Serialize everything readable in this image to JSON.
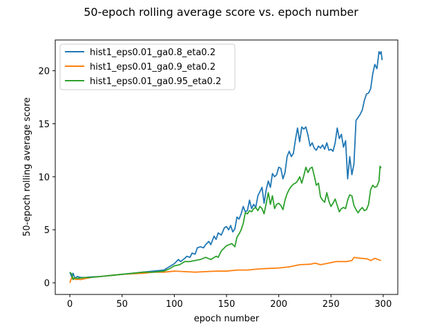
{
  "chart_data": {
    "type": "line",
    "title": "50-epoch rolling average score vs. epoch number",
    "xlabel": "epoch number",
    "ylabel": "50-epoch rolling average score",
    "xlim": [
      -14,
      314
    ],
    "ylim": [
      -1.1,
      22.9
    ],
    "xticks": [
      0,
      50,
      100,
      150,
      200,
      250,
      300
    ],
    "yticks": [
      0,
      5,
      10,
      15,
      20
    ],
    "grid": false,
    "legend_position": "top-left",
    "series": [
      {
        "name": "hist1_eps0.01_ga0.8_eta0.2",
        "color": "#1f77b4",
        "points": [
          [
            0,
            1.0
          ],
          [
            2,
            0.5
          ],
          [
            3,
            0.9
          ],
          [
            5,
            0.4
          ],
          [
            7,
            0.6
          ],
          [
            10,
            0.5
          ],
          [
            15,
            0.5
          ],
          [
            20,
            0.55
          ],
          [
            30,
            0.6
          ],
          [
            40,
            0.7
          ],
          [
            50,
            0.8
          ],
          [
            60,
            0.9
          ],
          [
            70,
            1.0
          ],
          [
            80,
            1.1
          ],
          [
            90,
            1.2
          ],
          [
            95,
            1.5
          ],
          [
            100,
            1.8
          ],
          [
            104,
            2.2
          ],
          [
            106,
            2.0
          ],
          [
            110,
            2.3
          ],
          [
            112,
            2.5
          ],
          [
            115,
            2.4
          ],
          [
            117,
            2.8
          ],
          [
            120,
            2.7
          ],
          [
            122,
            3.3
          ],
          [
            125,
            3.4
          ],
          [
            128,
            3.3
          ],
          [
            130,
            3.6
          ],
          [
            133,
            3.9
          ],
          [
            135,
            3.6
          ],
          [
            138,
            4.4
          ],
          [
            140,
            4.1
          ],
          [
            142,
            4.7
          ],
          [
            145,
            4.5
          ],
          [
            148,
            5.2
          ],
          [
            150,
            5.3
          ],
          [
            152,
            5.0
          ],
          [
            154,
            5.4
          ],
          [
            156,
            4.8
          ],
          [
            158,
            5.1
          ],
          [
            160,
            6.2
          ],
          [
            162,
            6.0
          ],
          [
            164,
            6.5
          ],
          [
            166,
            7.2
          ],
          [
            168,
            6.7
          ],
          [
            170,
            6.8
          ],
          [
            172,
            7.8
          ],
          [
            174,
            7.0
          ],
          [
            176,
            7.4
          ],
          [
            178,
            7.1
          ],
          [
            180,
            8.2
          ],
          [
            182,
            8.6
          ],
          [
            184,
            9.0
          ],
          [
            186,
            7.5
          ],
          [
            188,
            8.8
          ],
          [
            190,
            9.6
          ],
          [
            192,
            9.0
          ],
          [
            194,
            10.3
          ],
          [
            196,
            10.0
          ],
          [
            198,
            10.2
          ],
          [
            200,
            10.9
          ],
          [
            202,
            10.8
          ],
          [
            204,
            9.8
          ],
          [
            206,
            10.4
          ],
          [
            208,
            11.9
          ],
          [
            210,
            12.4
          ],
          [
            212,
            11.9
          ],
          [
            214,
            12.2
          ],
          [
            216,
            13.5
          ],
          [
            218,
            14.6
          ],
          [
            220,
            13.3
          ],
          [
            222,
            14.7
          ],
          [
            224,
            14.5
          ],
          [
            226,
            14.7
          ],
          [
            228,
            13.9
          ],
          [
            230,
            12.9
          ],
          [
            232,
            13.2
          ],
          [
            234,
            12.7
          ],
          [
            236,
            12.5
          ],
          [
            238,
            12.9
          ],
          [
            240,
            12.7
          ],
          [
            242,
            13.0
          ],
          [
            244,
            12.6
          ],
          [
            246,
            13.2
          ],
          [
            248,
            12.5
          ],
          [
            250,
            12.6
          ],
          [
            252,
            12.4
          ],
          [
            254,
            13.2
          ],
          [
            256,
            14.6
          ],
          [
            258,
            13.6
          ],
          [
            260,
            14.0
          ],
          [
            262,
            12.8
          ],
          [
            264,
            13.4
          ],
          [
            266,
            9.8
          ],
          [
            268,
            11.9
          ],
          [
            270,
            10.2
          ],
          [
            272,
            11.2
          ],
          [
            274,
            15.3
          ],
          [
            276,
            15.6
          ],
          [
            278,
            15.9
          ],
          [
            280,
            16.3
          ],
          [
            282,
            17.2
          ],
          [
            284,
            17.8
          ],
          [
            286,
            17.9
          ],
          [
            288,
            18.3
          ],
          [
            290,
            19.7
          ],
          [
            292,
            20.6
          ],
          [
            294,
            20.2
          ],
          [
            296,
            21.8
          ],
          [
            297,
            21.6
          ],
          [
            298,
            21.8
          ],
          [
            299,
            21.0
          ]
        ]
      },
      {
        "name": "hist1_eps0.01_ga0.9_eta0.2",
        "color": "#ff7f0e",
        "points": [
          [
            0,
            0.0
          ],
          [
            1,
            0.3
          ],
          [
            2,
            0.5
          ],
          [
            4,
            0.4
          ],
          [
            6,
            0.3
          ],
          [
            8,
            0.35
          ],
          [
            10,
            0.3
          ],
          [
            15,
            0.4
          ],
          [
            20,
            0.5
          ],
          [
            30,
            0.6
          ],
          [
            40,
            0.7
          ],
          [
            50,
            0.8
          ],
          [
            60,
            0.85
          ],
          [
            70,
            0.9
          ],
          [
            80,
            1.0
          ],
          [
            90,
            1.0
          ],
          [
            100,
            1.1
          ],
          [
            110,
            1.05
          ],
          [
            120,
            1.0
          ],
          [
            130,
            1.05
          ],
          [
            140,
            1.1
          ],
          [
            150,
            1.1
          ],
          [
            160,
            1.2
          ],
          [
            170,
            1.2
          ],
          [
            180,
            1.3
          ],
          [
            190,
            1.35
          ],
          [
            200,
            1.4
          ],
          [
            210,
            1.5
          ],
          [
            220,
            1.7
          ],
          [
            230,
            1.75
          ],
          [
            235,
            1.85
          ],
          [
            240,
            1.7
          ],
          [
            245,
            1.8
          ],
          [
            250,
            1.9
          ],
          [
            255,
            2.0
          ],
          [
            260,
            2.0
          ],
          [
            265,
            2.0
          ],
          [
            270,
            2.1
          ],
          [
            272,
            2.4
          ],
          [
            275,
            2.35
          ],
          [
            280,
            2.3
          ],
          [
            285,
            2.25
          ],
          [
            288,
            2.1
          ],
          [
            292,
            2.3
          ],
          [
            295,
            2.2
          ],
          [
            298,
            2.1
          ]
        ]
      },
      {
        "name": "hist1_eps0.01_ga0.95_eta0.2",
        "color": "#2ca02c",
        "points": [
          [
            0,
            1.0
          ],
          [
            2,
            0.8
          ],
          [
            3,
            0.3
          ],
          [
            5,
            0.5
          ],
          [
            7,
            0.4
          ],
          [
            10,
            0.45
          ],
          [
            15,
            0.5
          ],
          [
            20,
            0.5
          ],
          [
            30,
            0.6
          ],
          [
            40,
            0.7
          ],
          [
            50,
            0.8
          ],
          [
            60,
            0.9
          ],
          [
            70,
            1.0
          ],
          [
            80,
            1.0
          ],
          [
            90,
            1.1
          ],
          [
            95,
            1.3
          ],
          [
            100,
            1.6
          ],
          [
            105,
            1.7
          ],
          [
            110,
            2.0
          ],
          [
            115,
            2.0
          ],
          [
            120,
            2.1
          ],
          [
            125,
            2.2
          ],
          [
            130,
            2.4
          ],
          [
            135,
            2.2
          ],
          [
            140,
            2.5
          ],
          [
            142,
            2.4
          ],
          [
            145,
            3.0
          ],
          [
            150,
            3.5
          ],
          [
            155,
            3.7
          ],
          [
            158,
            3.4
          ],
          [
            160,
            4.3
          ],
          [
            162,
            4.6
          ],
          [
            164,
            5.0
          ],
          [
            166,
            5.6
          ],
          [
            168,
            6.6
          ],
          [
            170,
            6.5
          ],
          [
            172,
            6.8
          ],
          [
            174,
            6.7
          ],
          [
            176,
            7.0
          ],
          [
            178,
            7.1
          ],
          [
            180,
            6.8
          ],
          [
            182,
            7.2
          ],
          [
            184,
            7.0
          ],
          [
            186,
            6.5
          ],
          [
            188,
            7.5
          ],
          [
            190,
            8.5
          ],
          [
            192,
            7.4
          ],
          [
            194,
            8.2
          ],
          [
            196,
            7.0
          ],
          [
            198,
            7.4
          ],
          [
            200,
            7.5
          ],
          [
            202,
            7.3
          ],
          [
            204,
            6.9
          ],
          [
            206,
            7.8
          ],
          [
            208,
            8.4
          ],
          [
            210,
            8.8
          ],
          [
            212,
            9.1
          ],
          [
            214,
            9.3
          ],
          [
            216,
            9.4
          ],
          [
            218,
            9.6
          ],
          [
            220,
            10.0
          ],
          [
            222,
            9.4
          ],
          [
            224,
            10.1
          ],
          [
            226,
            10.9
          ],
          [
            228,
            10.4
          ],
          [
            230,
            10.8
          ],
          [
            232,
            10.9
          ],
          [
            234,
            10.1
          ],
          [
            236,
            9.2
          ],
          [
            238,
            9.4
          ],
          [
            240,
            8.1
          ],
          [
            242,
            7.8
          ],
          [
            244,
            7.6
          ],
          [
            246,
            8.5
          ],
          [
            248,
            7.7
          ],
          [
            250,
            7.2
          ],
          [
            252,
            7.5
          ],
          [
            254,
            7.9
          ],
          [
            256,
            7.3
          ],
          [
            258,
            6.7
          ],
          [
            260,
            7.0
          ],
          [
            262,
            7.1
          ],
          [
            264,
            7.0
          ],
          [
            266,
            7.8
          ],
          [
            268,
            8.3
          ],
          [
            270,
            8.2
          ],
          [
            272,
            7.3
          ],
          [
            274,
            6.9
          ],
          [
            276,
            6.6
          ],
          [
            278,
            6.9
          ],
          [
            280,
            7.1
          ],
          [
            282,
            6.8
          ],
          [
            284,
            6.9
          ],
          [
            286,
            7.4
          ],
          [
            288,
            8.8
          ],
          [
            290,
            9.2
          ],
          [
            292,
            9.0
          ],
          [
            294,
            9.1
          ],
          [
            296,
            9.6
          ],
          [
            297,
            11.0
          ],
          [
            298,
            10.8
          ]
        ]
      }
    ]
  }
}
